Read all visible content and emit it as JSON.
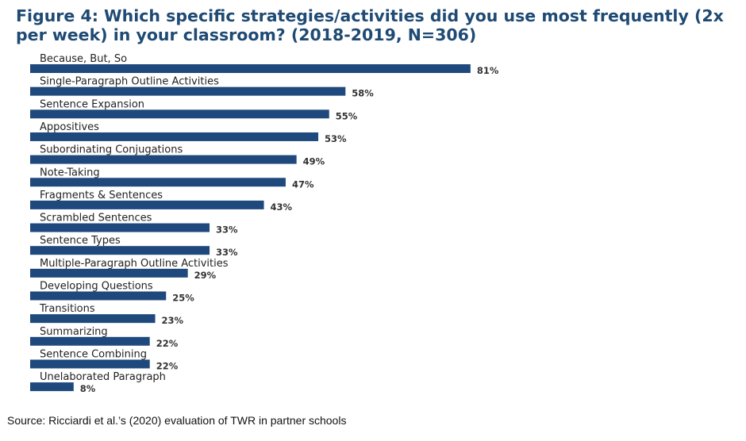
{
  "chart_data": {
    "type": "bar",
    "orientation": "horizontal",
    "title": "Figure 4: Which specific strategies/activities did you use most frequently (2x per week) in your classroom? (2018-2019, N=306)",
    "categories": [
      "Because, But, So",
      "Single-Paragraph Outline Activities",
      "Sentence Expansion",
      "Appositives",
      "Subordinating Conjugations",
      "Note-Taking",
      "Fragments & Sentences",
      "Scrambled Sentences",
      "Sentence Types",
      "Multiple-Paragraph Outline Activities",
      "Developing Questions",
      "Transitions",
      "Summarizing",
      "Sentence Combining",
      "Unelaborated Paragraph"
    ],
    "values": [
      81,
      58,
      55,
      53,
      49,
      47,
      43,
      33,
      33,
      29,
      25,
      23,
      22,
      22,
      8
    ],
    "value_suffix": "%",
    "xlabel": "",
    "ylabel": "",
    "xlim": [
      0,
      100
    ],
    "grid": false,
    "bar_color": "#1f497d"
  },
  "source": "Source: Ricciardi et al.’s (2020) evaluation of TWR in partner schools"
}
